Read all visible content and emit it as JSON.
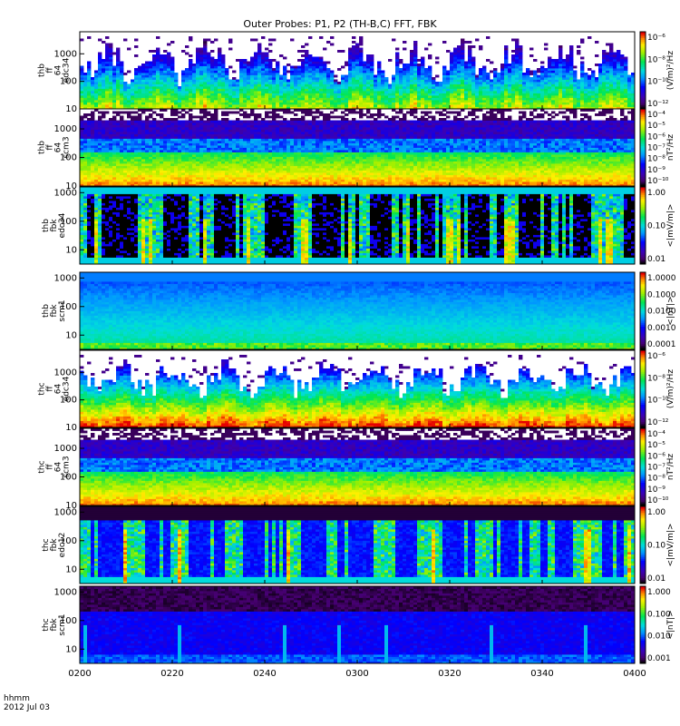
{
  "title": "Outer Probes: P1, P2 (TH-B,C) FFT, FBK",
  "footer": {
    "line1": "hhmm",
    "line2": "2012 Jul 03"
  },
  "chart_data": {
    "type": "heatmap",
    "x_ticks": [
      "0200",
      "0220",
      "0240",
      "0300",
      "0320",
      "0340",
      "0400"
    ],
    "panels": [
      {
        "ylabel": [
          "thb",
          "ff",
          "64",
          "edc34"
        ],
        "yticks": [
          "10",
          "100",
          "1000"
        ],
        "yticks_pos": [
          1,
          2,
          3
        ],
        "ymin": 1,
        "ymax": 3.8,
        "cbar_label": "(V/m)²/Hz",
        "cbar_ticks": [
          "10⁻⁶",
          "10⁻⁸",
          "10⁻¹⁰",
          "10⁻¹²"
        ],
        "style": "efield_burst",
        "seed": 11
      },
      {
        "ylabel": [
          "thb",
          "ff",
          "64",
          "scm3"
        ],
        "yticks": [
          "10",
          "100",
          "1000"
        ],
        "yticks_pos": [
          1,
          2,
          3
        ],
        "ymin": 1,
        "ymax": 3.7,
        "cbar_label": "nT²/Hz",
        "cbar_ticks": [
          "10⁻⁴",
          "10⁻⁵",
          "10⁻⁶",
          "10⁻⁷",
          "10⁻⁸",
          "10⁻⁹",
          "10⁻¹⁰"
        ],
        "style": "scm_ff",
        "seed": 23
      },
      {
        "ylabel": [
          "thb",
          "fbk",
          "edc34"
        ],
        "yticks": [
          "10",
          "100",
          "1000"
        ],
        "yticks_pos": [
          1,
          2,
          3
        ],
        "ymin": 0.5,
        "ymax": 3.2,
        "cbar_label": "<|mV/m|>",
        "cbar_ticks": [
          "1.00",
          "0.10",
          "0.01"
        ],
        "style": "fbk_e",
        "seed": 37
      },
      {
        "ylabel": [
          "thb",
          "fbk",
          "scm1"
        ],
        "yticks": [
          "10",
          "100",
          "1000"
        ],
        "yticks_pos": [
          1,
          2,
          3
        ],
        "ymin": 0.5,
        "ymax": 3.2,
        "cbar_label": "<|nT|>",
        "cbar_ticks": [
          "1.0000",
          "0.1000",
          "0.0100",
          "0.0010",
          "0.0001"
        ],
        "style": "fbk_b_thb",
        "seed": 41
      },
      {
        "ylabel": [
          "thc",
          "ff",
          "64",
          "edc34"
        ],
        "yticks": [
          "10",
          "100",
          "1000"
        ],
        "yticks_pos": [
          1,
          2,
          3
        ],
        "ymin": 1,
        "ymax": 3.8,
        "cbar_label": "(V/m)²/Hz",
        "cbar_ticks": [
          "10⁻⁶",
          "10⁻⁸",
          "10⁻¹⁰",
          "10⁻¹²"
        ],
        "style": "efield_burst_strong",
        "seed": 53
      },
      {
        "ylabel": [
          "thc",
          "ff",
          "64",
          "scm3"
        ],
        "yticks": [
          "10",
          "100",
          "1000"
        ],
        "yticks_pos": [
          1,
          2,
          3
        ],
        "ymin": 1,
        "ymax": 3.7,
        "cbar_label": "nT²/Hz",
        "cbar_ticks": [
          "10⁻⁴",
          "10⁻⁵",
          "10⁻⁶",
          "10⁻⁷",
          "10⁻⁸",
          "10⁻⁹",
          "10⁻¹⁰"
        ],
        "style": "scm_ff",
        "seed": 67
      },
      {
        "ylabel": [
          "thc",
          "fbk",
          "edc12"
        ],
        "yticks": [
          "10",
          "100",
          "1000"
        ],
        "yticks_pos": [
          1,
          2,
          3
        ],
        "ymin": 0.5,
        "ymax": 3.2,
        "cbar_label": "<|mV/m|>",
        "cbar_ticks": [
          "1.00",
          "0.10",
          "0.01"
        ],
        "style": "fbk_e_thc",
        "seed": 71
      },
      {
        "ylabel": [
          "thc",
          "fbk",
          "scm1"
        ],
        "yticks": [
          "10",
          "100",
          "1000"
        ],
        "yticks_pos": [
          1,
          2,
          3
        ],
        "ymin": 0.5,
        "ymax": 3.2,
        "cbar_label": "<|nT|>",
        "cbar_ticks": [
          "1.000",
          "0.100",
          "0.010",
          "0.001"
        ],
        "style": "fbk_b_thc",
        "seed": 83
      }
    ]
  }
}
